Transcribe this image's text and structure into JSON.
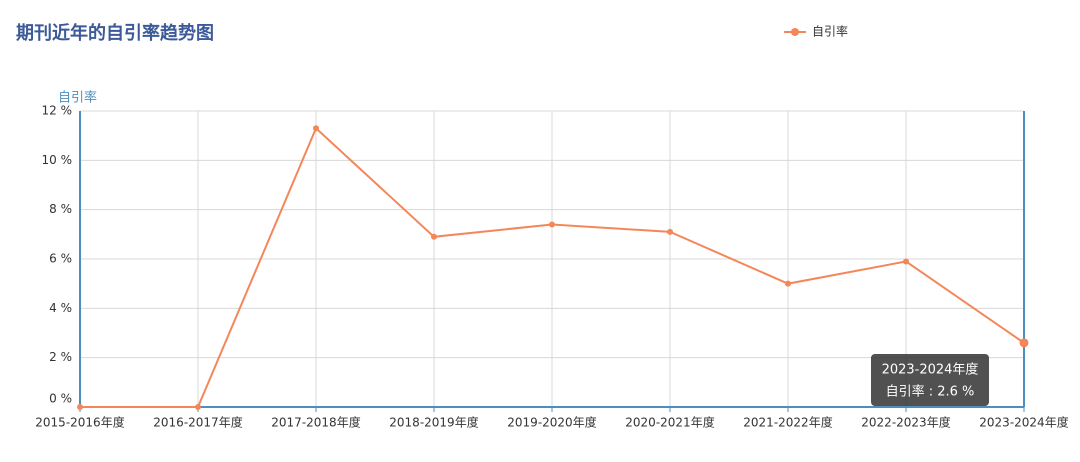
{
  "chart_data": {
    "type": "line",
    "title": "期刊近年的自引率趋势图",
    "y_label": "自引率",
    "categories": [
      "2015-2016年度",
      "2016-2017年度",
      "2017-2018年度",
      "2018-2019年度",
      "2019-2020年度",
      "2020-2021年度",
      "2021-2022年度",
      "2022-2023年度",
      "2023-2024年度"
    ],
    "series": [
      {
        "name": "自引率",
        "color": "#f4875a",
        "values": [
          0,
          0,
          11.3,
          6.9,
          7.4,
          7.1,
          5.0,
          5.9,
          2.6
        ]
      }
    ],
    "ylim": [
      0,
      12
    ],
    "yticks": [
      {
        "value": 0,
        "label": "0 %"
      },
      {
        "value": 2,
        "label": "2 %"
      },
      {
        "value": 4,
        "label": "4 %"
      },
      {
        "value": 6,
        "label": "6 %"
      },
      {
        "value": 8,
        "label": "8 %"
      },
      {
        "value": 10,
        "label": "10 %"
      },
      {
        "value": 12,
        "label": "12 %"
      }
    ],
    "grid": true,
    "legend": "top-right",
    "tooltip": {
      "title": "2023-2024年度",
      "text": "自引率 : 2.6 %"
    }
  }
}
